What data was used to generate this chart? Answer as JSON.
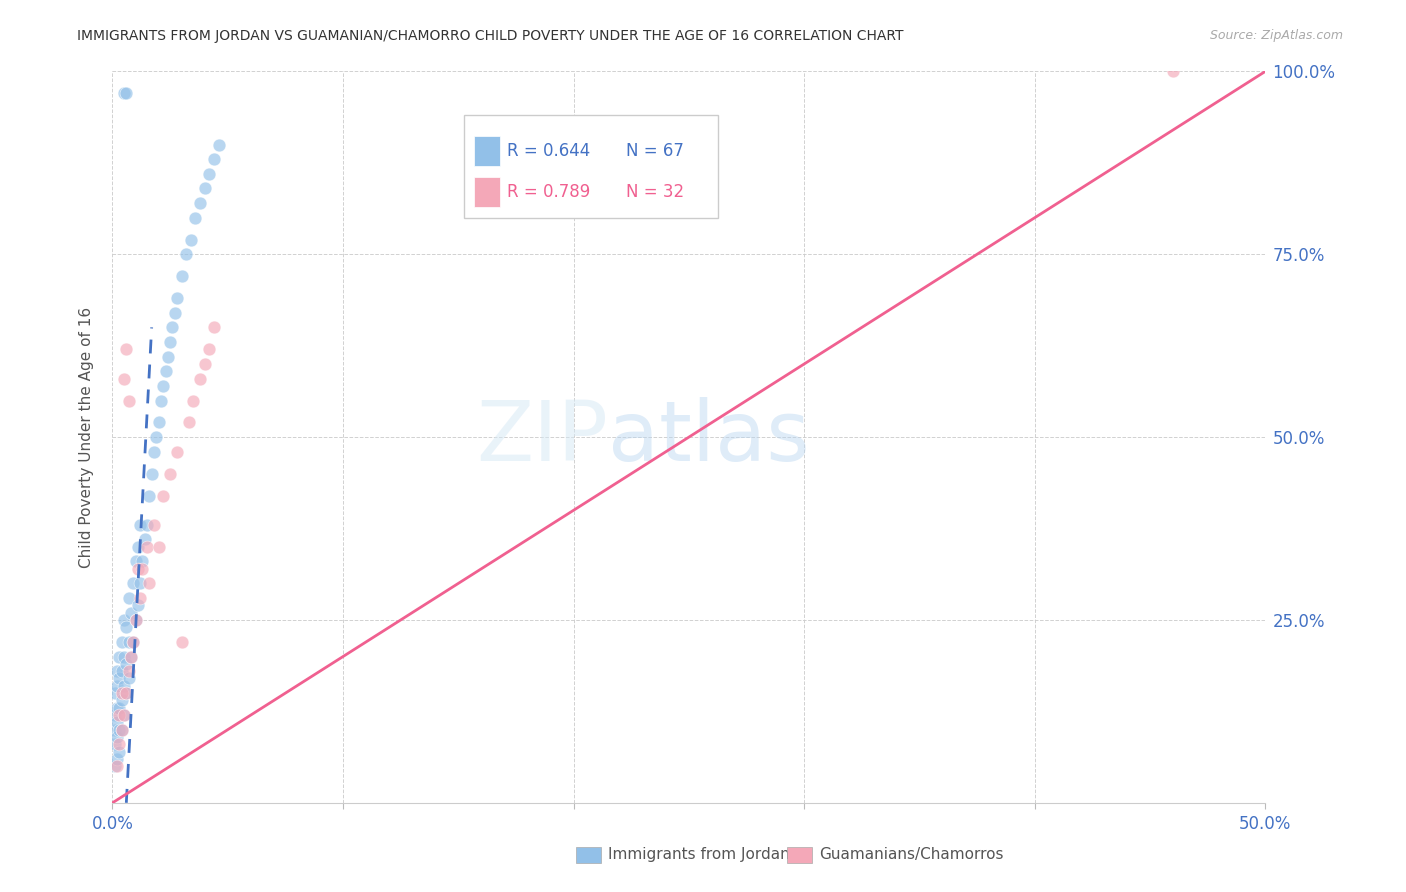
{
  "title": "IMMIGRANTS FROM JORDAN VS GUAMANIAN/CHAMORRO CHILD POVERTY UNDER THE AGE OF 16 CORRELATION CHART",
  "source": "Source: ZipAtlas.com",
  "ylabel": "Child Poverty Under the Age of 16",
  "legend_r1": "R = 0.644",
  "legend_n1": "N = 67",
  "legend_r2": "R = 0.789",
  "legend_n2": "N = 32",
  "legend_label1": "Immigrants from Jordan",
  "legend_label2": "Guamanians/Chamorros",
  "blue_color": "#92c0e8",
  "pink_color": "#f4a8b8",
  "blue_line_color": "#4472c4",
  "pink_line_color": "#f06090",
  "right_axis_color": "#4472c4",
  "title_color": "#333333",
  "background_color": "#ffffff",
  "xlim": [
    0.0,
    0.5
  ],
  "ylim": [
    0.0,
    1.0
  ],
  "xtick_positions": [
    0.0,
    0.1,
    0.2,
    0.3,
    0.4,
    0.5
  ],
  "xtick_labels": [
    "0.0%",
    "",
    "",
    "",
    "",
    "50.0%"
  ],
  "ytick_right_positions": [
    0.0,
    0.25,
    0.5,
    0.75,
    1.0
  ],
  "ytick_right_labels": [
    "",
    "25.0%",
    "50.0%",
    "75.0%",
    "100.0%"
  ],
  "jordan_x": [
    0.001,
    0.001,
    0.001,
    0.001,
    0.001,
    0.002,
    0.002,
    0.002,
    0.002,
    0.002,
    0.002,
    0.003,
    0.003,
    0.003,
    0.003,
    0.003,
    0.004,
    0.004,
    0.004,
    0.004,
    0.005,
    0.005,
    0.005,
    0.005,
    0.006,
    0.006,
    0.006,
    0.007,
    0.007,
    0.007,
    0.008,
    0.008,
    0.009,
    0.009,
    0.01,
    0.01,
    0.011,
    0.011,
    0.012,
    0.012,
    0.013,
    0.014,
    0.015,
    0.016,
    0.017,
    0.018,
    0.019,
    0.02,
    0.021,
    0.022,
    0.023,
    0.024,
    0.025,
    0.026,
    0.027,
    0.028,
    0.03,
    0.032,
    0.034,
    0.036,
    0.038,
    0.04,
    0.042,
    0.044,
    0.046,
    0.005,
    0.006
  ],
  "jordan_y": [
    0.05,
    0.08,
    0.1,
    0.12,
    0.15,
    0.06,
    0.09,
    0.11,
    0.13,
    0.16,
    0.18,
    0.07,
    0.1,
    0.13,
    0.17,
    0.2,
    0.1,
    0.14,
    0.18,
    0.22,
    0.12,
    0.16,
    0.2,
    0.25,
    0.15,
    0.19,
    0.24,
    0.17,
    0.22,
    0.28,
    0.2,
    0.26,
    0.22,
    0.3,
    0.25,
    0.33,
    0.27,
    0.35,
    0.3,
    0.38,
    0.33,
    0.36,
    0.38,
    0.42,
    0.45,
    0.48,
    0.5,
    0.52,
    0.55,
    0.57,
    0.59,
    0.61,
    0.63,
    0.65,
    0.67,
    0.69,
    0.72,
    0.75,
    0.77,
    0.8,
    0.82,
    0.84,
    0.86,
    0.88,
    0.9,
    0.97,
    0.97
  ],
  "guam_x": [
    0.002,
    0.003,
    0.003,
    0.004,
    0.004,
    0.005,
    0.005,
    0.006,
    0.006,
    0.007,
    0.007,
    0.008,
    0.009,
    0.01,
    0.011,
    0.012,
    0.013,
    0.015,
    0.016,
    0.018,
    0.02,
    0.022,
    0.025,
    0.028,
    0.03,
    0.033,
    0.035,
    0.038,
    0.04,
    0.042,
    0.044,
    0.46
  ],
  "guam_y": [
    0.05,
    0.08,
    0.12,
    0.1,
    0.15,
    0.58,
    0.12,
    0.62,
    0.15,
    0.55,
    0.18,
    0.2,
    0.22,
    0.25,
    0.32,
    0.28,
    0.32,
    0.35,
    0.3,
    0.38,
    0.35,
    0.42,
    0.45,
    0.48,
    0.22,
    0.52,
    0.55,
    0.58,
    0.6,
    0.62,
    0.65,
    1.0
  ],
  "blue_trend_x": [
    0.006,
    0.017
  ],
  "blue_trend_y": [
    0.0,
    0.65
  ],
  "pink_trend_x": [
    0.0,
    0.5
  ],
  "pink_trend_y": [
    0.0,
    1.0
  ]
}
